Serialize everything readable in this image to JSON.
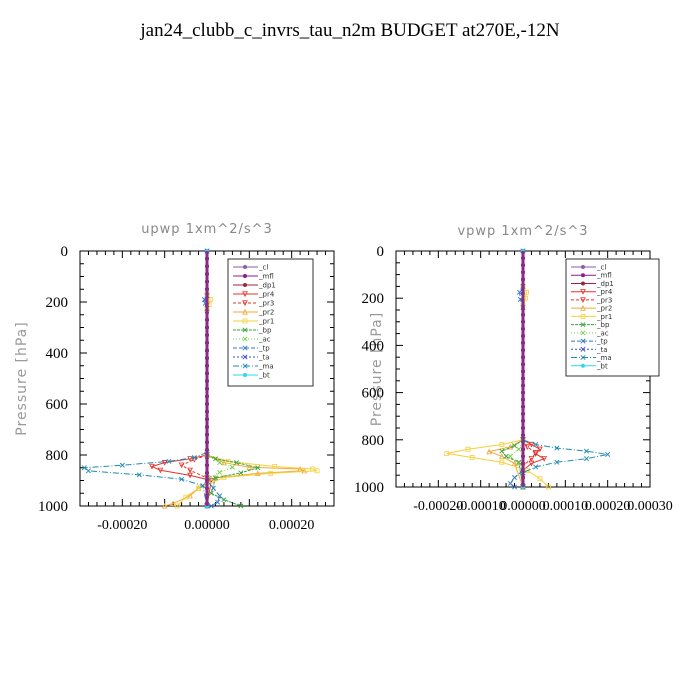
{
  "figure": {
    "title": "jan24_clubb_c_invrs_tau_n2m  BUDGET at270E,-12N"
  },
  "colors": {
    "_cl": "#8e5ea2",
    "_mfl": "#8a1f8a",
    "_dp1": "#a0243c",
    "_pr4": "#e8302a",
    "_pr3": "#e8302a",
    "_pr2": "#f2a93b",
    "_pr1": "#f5d03a",
    "_bp": "#3aa43a",
    "_ac": "#72d04a",
    "_tp": "#2e77c8",
    "_ta": "#3b4ad0",
    "_ma": "#1e8ab0",
    "_bt": "#2ed8e8"
  },
  "chart_data": [
    {
      "type": "line",
      "title": "upwp   1xm^2/s^3",
      "ylabel": "Pressure [hPa]",
      "xlabel": "",
      "ylim": [
        1000,
        0
      ],
      "xlim": [
        -0.0003,
        0.0003
      ],
      "y_ticks": [
        "0",
        "200",
        "400",
        "600",
        "800",
        "1000"
      ],
      "x_ticks": [
        "-0.00020",
        "0.00000",
        "0.00020"
      ],
      "legend": [
        "_cl",
        "_mfl",
        "_dp1",
        "_pr4",
        "_pr3",
        "_pr2",
        "_pr1",
        "_bp",
        "_ac",
        "_tp",
        "_ta",
        "_ma",
        "_bt"
      ],
      "legend_position": "top-right",
      "series": [
        {
          "name": "_cl",
          "points": [
            [
              0,
              0
            ],
            [
              0,
              1000
            ]
          ]
        },
        {
          "name": "_mfl",
          "points": [
            [
              0,
              0
            ],
            [
              0,
              1000
            ]
          ]
        },
        {
          "name": "_dp1",
          "points": [
            [
              0,
              0
            ],
            [
              0,
              1000
            ]
          ]
        },
        {
          "name": "_pr4",
          "points": [
            [
              0,
              800
            ],
            [
              -4e-05,
              815
            ],
            [
              -0.0001,
              830
            ],
            [
              -0.00013,
              845
            ],
            [
              -0.00011,
              860
            ],
            [
              -4e-05,
              880
            ],
            [
              1e-05,
              900
            ],
            [
              0,
              1000
            ]
          ]
        },
        {
          "name": "_pr3",
          "points": [
            [
              0,
              800
            ],
            [
              -3e-05,
              818
            ],
            [
              -6e-05,
              840
            ],
            [
              -4e-05,
              860
            ],
            [
              0,
              890
            ],
            [
              0,
              1000
            ]
          ]
        },
        {
          "name": "_pr2",
          "points": [
            [
              0,
              800
            ],
            [
              4e-05,
              830
            ],
            [
              0.0001,
              848
            ],
            [
              0.00022,
              855
            ],
            [
              0.00023,
              862
            ],
            [
              0.00012,
              872
            ],
            [
              2e-05,
              890
            ],
            [
              -2e-05,
              930
            ],
            [
              -4e-05,
              960
            ],
            [
              -8e-05,
              990
            ],
            [
              -0.0001,
              1000
            ]
          ]
        },
        {
          "name": "_pr1",
          "points": [
            [
              0,
              170
            ],
            [
              8e-06,
              190
            ],
            [
              5e-06,
              210
            ],
            [
              0,
              230
            ],
            [
              0,
              800
            ],
            [
              5e-05,
              825
            ],
            [
              0.00016,
              845
            ],
            [
              0.00025,
              855
            ],
            [
              0.00026,
              862
            ],
            [
              0.00015,
              872
            ],
            [
              4e-05,
              888
            ],
            [
              -2e-05,
              930
            ],
            [
              -5e-05,
              965
            ],
            [
              -7e-05,
              1000
            ]
          ]
        },
        {
          "name": "_bp",
          "points": [
            [
              0,
              800
            ],
            [
              2e-05,
              815
            ],
            [
              7e-05,
              830
            ],
            [
              0.00012,
              850
            ],
            [
              8e-05,
              870
            ],
            [
              2e-05,
              890
            ],
            [
              1e-05,
              950
            ],
            [
              4e-05,
              975
            ],
            [
              8e-05,
              1000
            ]
          ]
        },
        {
          "name": "_ac",
          "points": [
            [
              0,
              800
            ],
            [
              3e-05,
              830
            ],
            [
              6e-05,
              848
            ],
            [
              3e-05,
              868
            ],
            [
              5e-06,
              890
            ],
            [
              0,
              1000
            ]
          ]
        },
        {
          "name": "_tp",
          "points": [
            [
              0,
              0
            ],
            [
              0,
              175
            ],
            [
              -6e-06,
              190
            ],
            [
              -4e-06,
              205
            ],
            [
              0,
              225
            ],
            [
              0,
              900
            ],
            [
              1.5e-05,
              930
            ],
            [
              3e-05,
              960
            ],
            [
              2.5e-05,
              985
            ],
            [
              1e-05,
              1000
            ]
          ]
        },
        {
          "name": "_ta",
          "points": [
            [
              0,
              0
            ],
            [
              0,
              1000
            ]
          ]
        },
        {
          "name": "_ma",
          "points": [
            [
              0,
              790
            ],
            [
              -3e-05,
              810
            ],
            [
              -9e-05,
              825
            ],
            [
              -0.0002,
              840
            ],
            [
              -0.00029,
              850
            ],
            [
              -0.00028,
              862
            ],
            [
              -0.00016,
              878
            ],
            [
              -6e-05,
              895
            ],
            [
              -1e-05,
              920
            ],
            [
              0,
              1000
            ]
          ]
        },
        {
          "name": "_bt",
          "points": [
            [
              0,
              0
            ],
            [
              0,
              1000
            ]
          ]
        }
      ]
    },
    {
      "type": "line",
      "title": "vpwp   1xm^2/s^3",
      "ylabel": "Pressure [hPa]",
      "xlabel": "",
      "ylim": [
        1000,
        0
      ],
      "xlim": [
        -0.0003,
        0.0003
      ],
      "y_ticks": [
        "0",
        "200",
        "400",
        "600",
        "800",
        "1000"
      ],
      "x_ticks": [
        "-0.00020",
        "-0.00010",
        "0.00000",
        "0.00010",
        "0.00020",
        "0.00030"
      ],
      "legend": [
        "_cl",
        "_mfl",
        "_dp1",
        "_pr4",
        "_pr3",
        "_pr2",
        "_pr1",
        "_bp",
        "_ac",
        "_tp",
        "_ta",
        "_ma",
        "_bt"
      ],
      "legend_position": "top-right",
      "series": [
        {
          "name": "_cl",
          "points": [
            [
              0,
              0
            ],
            [
              0,
              1000
            ]
          ]
        },
        {
          "name": "_mfl",
          "points": [
            [
              0,
              0
            ],
            [
              0,
              1000
            ]
          ]
        },
        {
          "name": "_dp1",
          "points": [
            [
              0,
              0
            ],
            [
              0,
              1000
            ]
          ]
        },
        {
          "name": "_pr4",
          "points": [
            [
              0,
              800
            ],
            [
              2e-05,
              820
            ],
            [
              4e-05,
              840
            ],
            [
              3e-05,
              860
            ],
            [
              5e-05,
              880
            ],
            [
              2e-05,
              900
            ],
            [
              0,
              930
            ],
            [
              0,
              1000
            ]
          ]
        },
        {
          "name": "_pr3",
          "points": [
            [
              0,
              800
            ],
            [
              1e-05,
              830
            ],
            [
              3e-05,
              855
            ],
            [
              2e-05,
              880
            ],
            [
              0,
              910
            ],
            [
              0,
              1000
            ]
          ]
        },
        {
          "name": "_pr2",
          "points": [
            [
              0,
              800
            ],
            [
              -3e-05,
              830
            ],
            [
              -8e-05,
              850
            ],
            [
              -5e-05,
              870
            ],
            [
              -2e-05,
              900
            ],
            [
              0,
              1000
            ]
          ]
        },
        {
          "name": "_pr1",
          "points": [
            [
              0,
              150
            ],
            [
              8e-06,
              175
            ],
            [
              6e-06,
              200
            ],
            [
              0,
              230
            ],
            [
              0,
              800
            ],
            [
              -5e-05,
              820
            ],
            [
              -0.00013,
              840
            ],
            [
              -0.00018,
              858
            ],
            [
              -0.00012,
              875
            ],
            [
              -5e-05,
              895
            ],
            [
              1e-05,
              930
            ],
            [
              4e-05,
              965
            ],
            [
              6e-05,
              1000
            ]
          ]
        },
        {
          "name": "_bp",
          "points": [
            [
              0,
              800
            ],
            [
              -2e-05,
              825
            ],
            [
              -5e-05,
              848
            ],
            [
              -4e-05,
              870
            ],
            [
              -1e-05,
              895
            ],
            [
              0,
              1000
            ]
          ]
        },
        {
          "name": "_ac",
          "points": [
            [
              0,
              800
            ],
            [
              -1e-05,
              840
            ],
            [
              -3e-05,
              870
            ],
            [
              -1e-05,
              900
            ],
            [
              0,
              1000
            ]
          ]
        },
        {
          "name": "_tp",
          "points": [
            [
              0,
              0
            ],
            [
              0,
              150
            ],
            [
              -8e-06,
              175
            ],
            [
              -6e-06,
              205
            ],
            [
              0,
              240
            ],
            [
              0,
              930
            ],
            [
              -2e-05,
              960
            ],
            [
              -3e-05,
              985
            ],
            [
              -2e-05,
              1000
            ]
          ]
        },
        {
          "name": "_ta",
          "points": [
            [
              0,
              0
            ],
            [
              0,
              1000
            ]
          ]
        },
        {
          "name": "_ma",
          "points": [
            [
              0,
              800
            ],
            [
              3e-05,
              820
            ],
            [
              8e-05,
              835
            ],
            [
              0.00015,
              848
            ],
            [
              0.0002,
              862
            ],
            [
              0.00015,
              880
            ],
            [
              8e-05,
              895
            ],
            [
              3e-05,
              915
            ],
            [
              0,
              940
            ],
            [
              0,
              1000
            ]
          ]
        },
        {
          "name": "_bt",
          "points": [
            [
              0,
              0
            ],
            [
              0,
              1000
            ]
          ]
        }
      ]
    }
  ]
}
